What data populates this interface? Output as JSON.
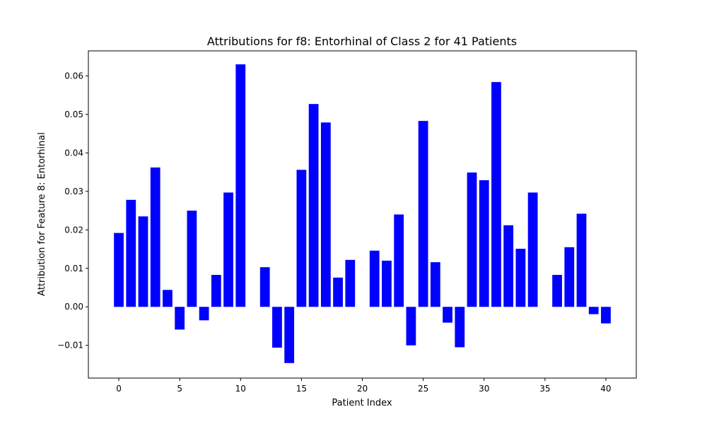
{
  "chart_data": {
    "type": "bar",
    "title": "Attributions for f8: Entorhinal of Class 2 for 41 Patients",
    "xlabel": "Patient Index",
    "ylabel": "Attribution for Feature 8: Entorhinal",
    "bar_color": "#0000ff",
    "xlim": [
      -2.5,
      42.5
    ],
    "ylim": [
      -0.0185,
      0.0665
    ],
    "grid": false,
    "x": [
      0,
      1,
      2,
      3,
      4,
      5,
      6,
      7,
      8,
      9,
      10,
      11,
      12,
      13,
      14,
      15,
      16,
      17,
      18,
      19,
      20,
      21,
      22,
      23,
      24,
      25,
      26,
      27,
      28,
      29,
      30,
      31,
      32,
      33,
      34,
      35,
      36,
      37,
      38,
      39,
      40
    ],
    "values": [
      0.0192,
      0.0278,
      0.0235,
      0.0362,
      0.0044,
      -0.0059,
      0.025,
      -0.0035,
      0.0083,
      0.0297,
      0.063,
      0.0,
      0.0103,
      -0.0106,
      -0.0146,
      0.0356,
      0.0527,
      0.0479,
      0.0076,
      0.0122,
      0.0,
      0.0146,
      0.012,
      0.024,
      -0.01,
      0.0483,
      0.0116,
      -0.0041,
      -0.0105,
      0.0349,
      0.0329,
      0.0584,
      0.0212,
      0.0151,
      0.0297,
      0.0,
      0.0083,
      0.0155,
      0.0242,
      -0.0019,
      -0.0043
    ],
    "xticks": [
      0,
      5,
      10,
      15,
      20,
      25,
      30,
      35,
      40
    ],
    "xtick_labels": [
      "0",
      "5",
      "10",
      "15",
      "20",
      "25",
      "30",
      "35",
      "40"
    ],
    "yticks": [
      -0.01,
      0.0,
      0.01,
      0.02,
      0.03,
      0.04,
      0.05,
      0.06
    ],
    "ytick_labels": [
      "−0.01",
      "0.00",
      "0.01",
      "0.02",
      "0.03",
      "0.04",
      "0.05",
      "0.06"
    ]
  }
}
